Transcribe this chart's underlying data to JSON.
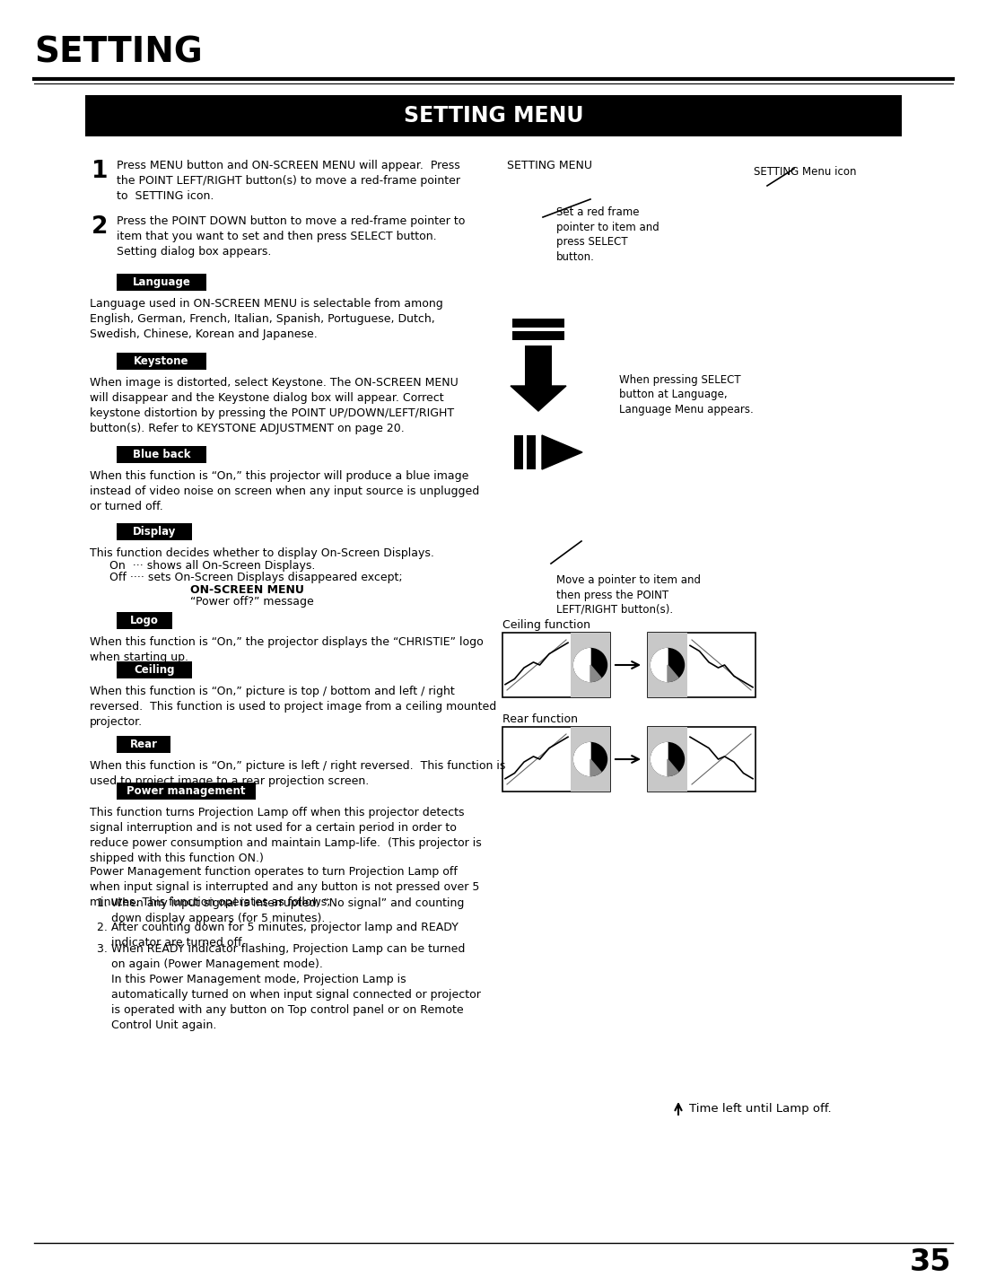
{
  "page_title": "SETTING",
  "section_title": "SETTING MENU",
  "bg_color": "#ffffff",
  "title_color": "#000000",
  "section_bg": "#000000",
  "section_fg": "#ffffff",
  "tag_bg": "#000000",
  "tag_fg": "#ffffff",
  "body_color": "#000000",
  "page_number": "35",
  "step1_num": "1",
  "step1_text": "Press MENU button and ON-SCREEN MENU will appear.  Press\nthe POINT LEFT/RIGHT button(s) to move a red-frame pointer\nto  SETTING icon.",
  "step2_num": "2",
  "step2_text": "Press the POINT DOWN button to move a red-frame pointer to\nitem that you want to set and then press SELECT button.\nSetting dialog box appears.",
  "right_col_title": "SETTING MENU",
  "right_note1": "Set a red frame\npointer to item and\npress SELECT\nbutton.",
  "right_note2": "SETTING Menu icon",
  "right_note3": "When pressing SELECT\nbutton at Language,\nLanguage Menu appears.",
  "right_note4": "Move a pointer to item and\nthen press the POINT\nLEFT/RIGHT button(s).",
  "right_label_ceiling": "Ceiling function",
  "right_label_rear": "Rear function",
  "right_label_time": "Time left until Lamp off.",
  "tag_language": "Language",
  "tag_keystone": "Keystone",
  "tag_blueback": "Blue back",
  "tag_display": "Display",
  "tag_logo": "Logo",
  "tag_ceiling": "Ceiling",
  "tag_rear": "Rear",
  "tag_power": "Power management",
  "language_text": "Language used in ON-SCREEN MENU is selectable from among\nEnglish, German, French, Italian, Spanish, Portuguese, Dutch,\nSwedish, Chinese, Korean and Japanese.",
  "keystone_text": "When image is distorted, select Keystone. The ON-SCREEN MENU\nwill disappear and the Keystone dialog box will appear. Correct\nkeystone distortion by pressing the POINT UP/DOWN/LEFT/RIGHT\nbutton(s). Refer to KEYSTONE ADJUSTMENT on page 20.",
  "blueback_text": "When this function is “On,” this projector will produce a blue image\ninstead of video noise on screen when any input source is unplugged\nor turned off.",
  "display_text1": "This function decides whether to display On-Screen Displays.",
  "display_text2": "On  ··· shows all On-Screen Displays.",
  "display_text3": "Off ···· sets On-Screen Displays disappeared except;",
  "display_text4": "ON-SCREEN MENU",
  "display_text5": "“Power off?” message",
  "logo_text": "When this function is “On,” the projector displays the “CHRISTIE” logo\nwhen starting up.",
  "ceiling_text": "When this function is “On,” picture is top / bottom and left / right\nreversed.  This function is used to project image from a ceiling mounted\nprojector.",
  "rear_text": "When this function is “On,” picture is left / right reversed.  This function is\nused to project image to a rear projection screen.",
  "power_text1": "This function turns Projection Lamp off when this projector detects\nsignal interruption and is not used for a certain period in order to\nreduce power consumption and maintain Lamp-life.  (This projector is\nshipped with this function ON.)",
  "power_text2": "Power Management function operates to turn Projection Lamp off\nwhen input signal is interrupted and any button is not pressed over 5\nminutes. This function operates as follows;",
  "power_list1": "1. When any input signal is interrupted, “No signal” and counting\n    down display appears (for 5 minutes).",
  "power_list2": "2. After counting down for 5 minutes, projector lamp and READY\n    indicator are turned off.",
  "power_list3": "3. When READY indicator flashing, Projection Lamp can be turned\n    on again (Power Management mode).\n    In this Power Management mode, Projection Lamp is\n    automatically turned on when input signal connected or projector\n    is operated with any button on Top control panel or on Remote\n    Control Unit again."
}
